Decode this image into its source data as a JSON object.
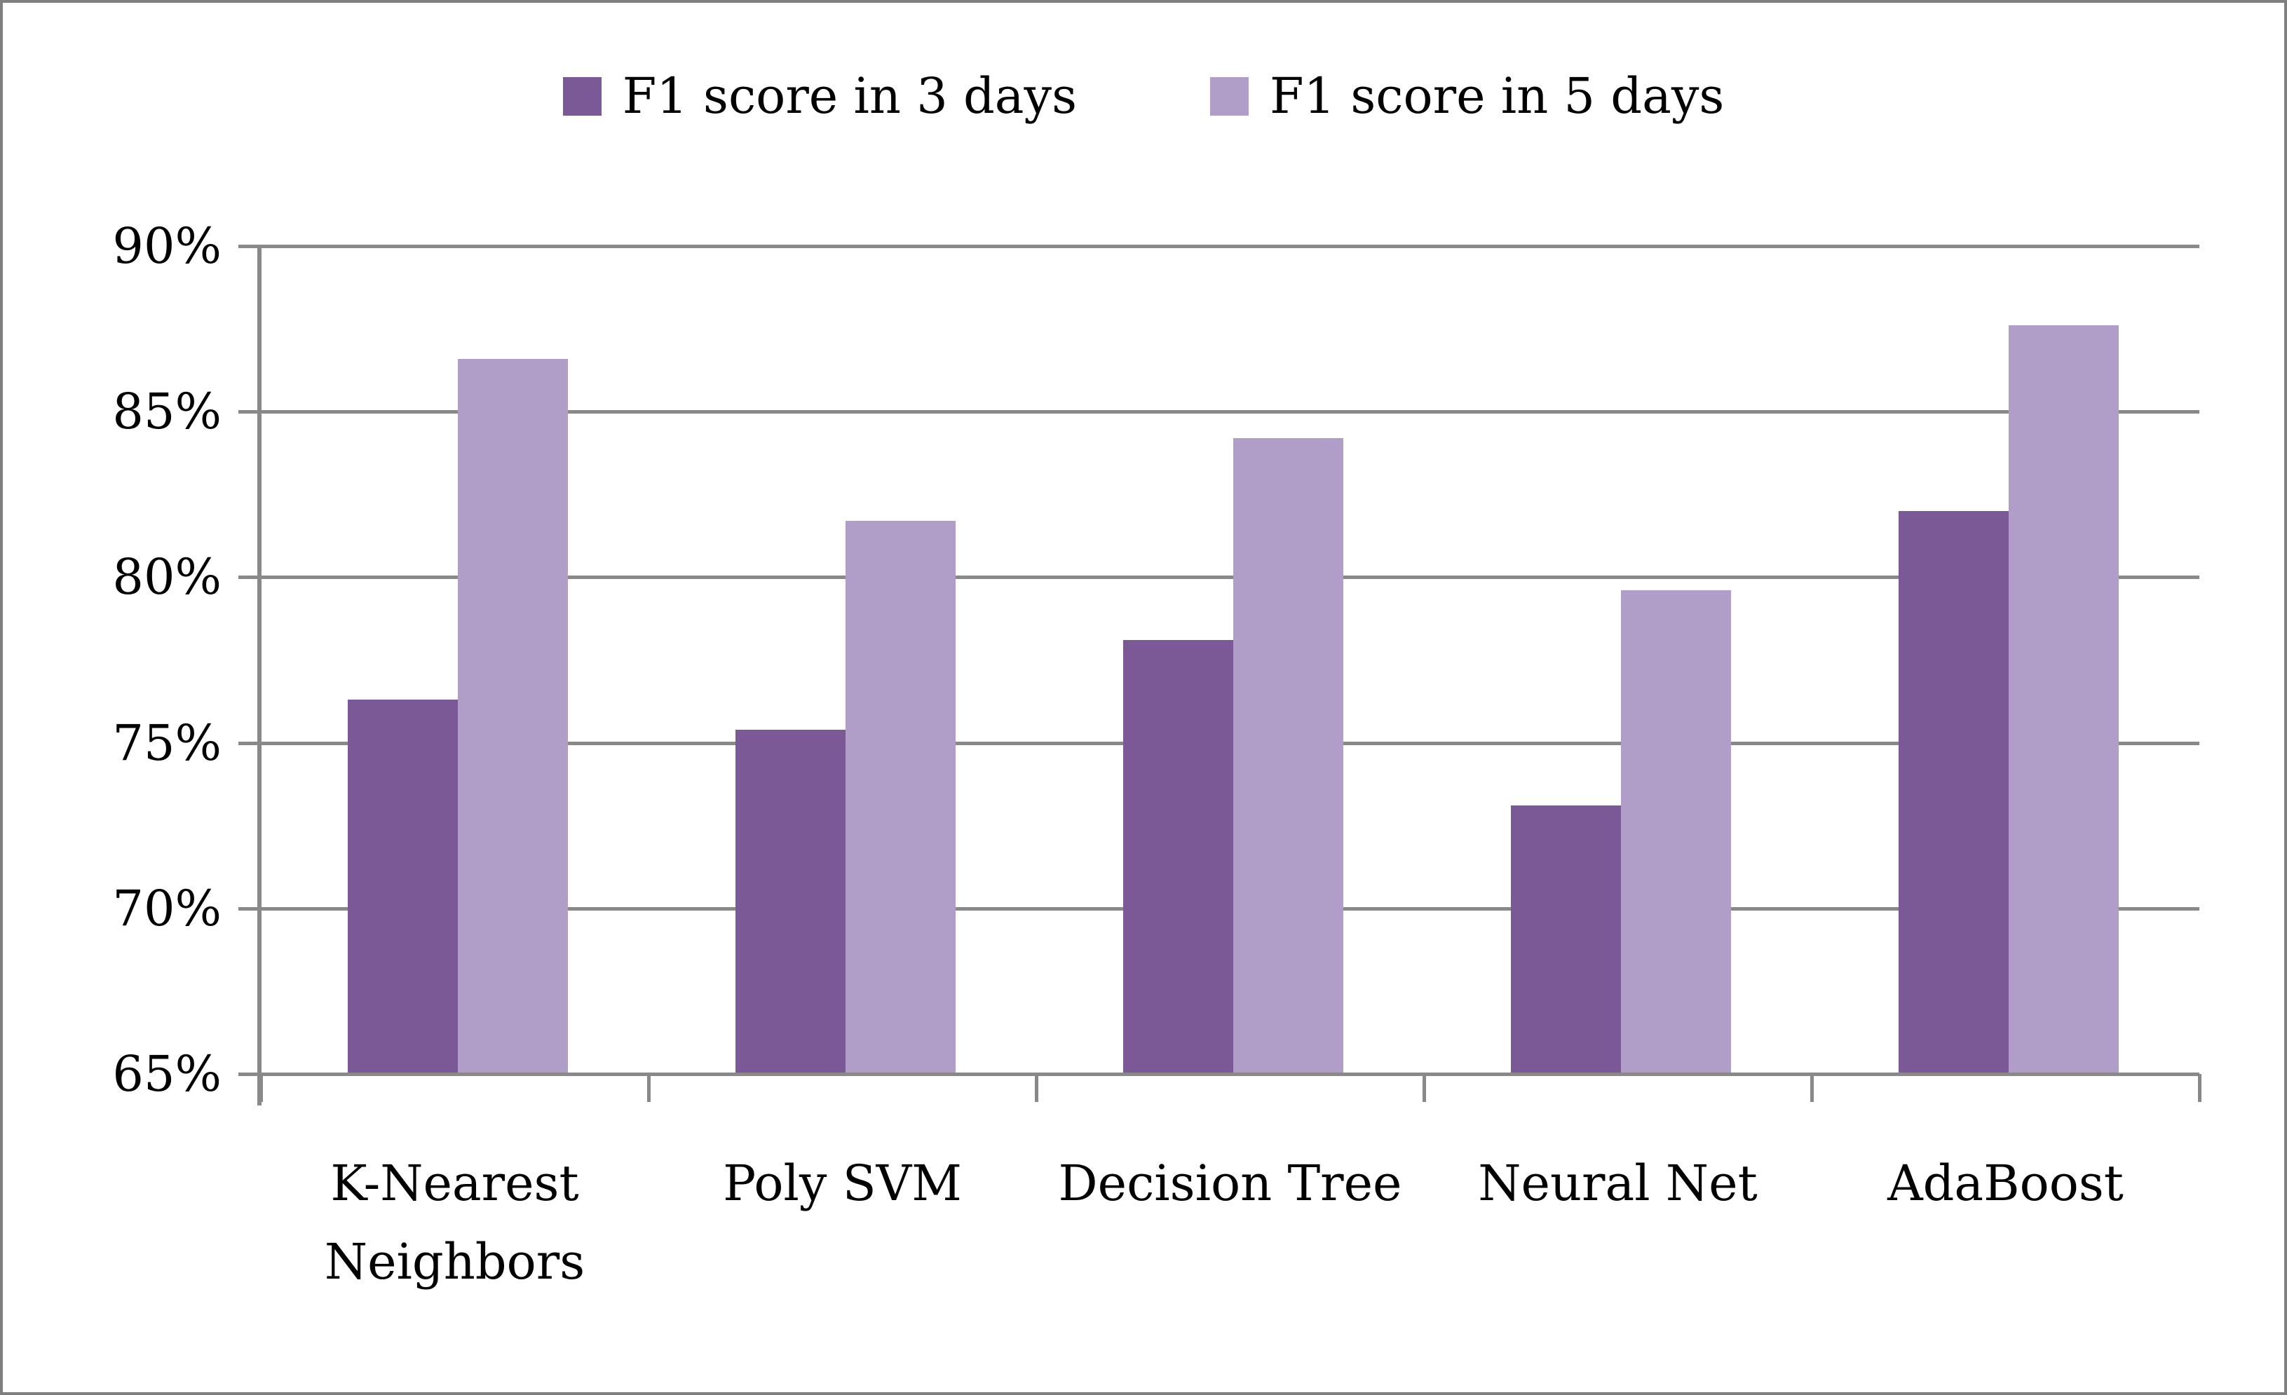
{
  "chart_data": {
    "type": "bar",
    "title": "",
    "categories": [
      "K-Nearest Neighbors",
      "Poly SVM",
      "Decision Tree",
      "Neural Net",
      "AdaBoost"
    ],
    "series": [
      {
        "name": "F1 score in 3 days",
        "color": "#7B5896",
        "values": [
          76.3,
          75.4,
          78.1,
          73.1,
          82.0
        ]
      },
      {
        "name": "F1 score in 5 days",
        "color": "#B09EC9",
        "values": [
          86.6,
          81.7,
          84.2,
          79.6,
          87.6
        ]
      }
    ],
    "value_unit": "%",
    "ylim": [
      65,
      90
    ],
    "y_ticks": [
      90,
      85,
      80,
      75,
      70,
      65
    ],
    "y_tick_labels": [
      "90%",
      "85%",
      "80%",
      "75%",
      "70%",
      "65%"
    ],
    "grid": "horizontal",
    "legend_position": "top-center",
    "colors": {
      "gridline": "#898989",
      "axis": "#898989",
      "frame_border": "#7F7F7F",
      "text": "#000000",
      "background": "#FFFFFF"
    }
  }
}
